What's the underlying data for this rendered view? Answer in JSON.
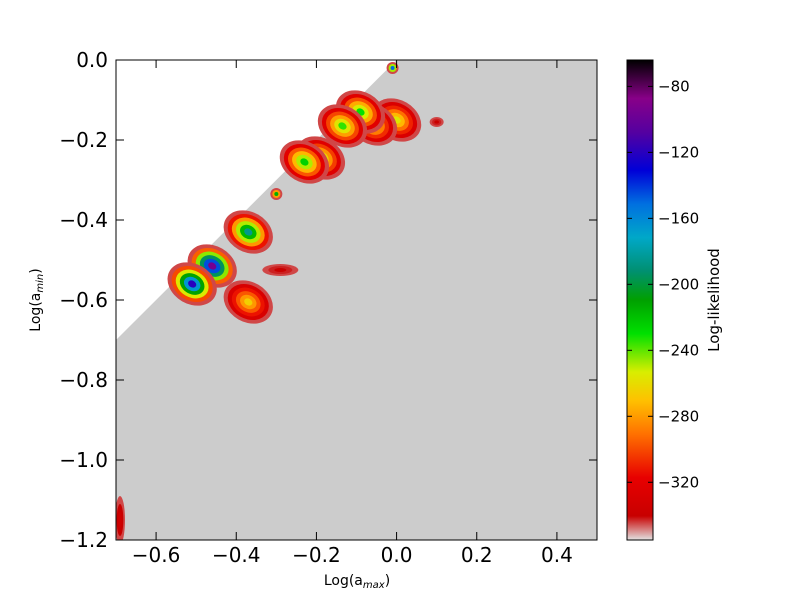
{
  "chart_data": {
    "type": "heatmap",
    "title": "",
    "xlabel": "Log(a_max)",
    "ylabel": "Log(a_min)",
    "xlabel_parts": {
      "base": "Log(a",
      "sub": "max",
      "end": ")"
    },
    "ylabel_parts": {
      "base": "Log(a",
      "sub": "min",
      "end": ")"
    },
    "xlim": [
      -0.7,
      0.5
    ],
    "ylim": [
      -1.2,
      0.0
    ],
    "x_ticks": [
      -0.6,
      -0.4,
      -0.2,
      0.0,
      0.2,
      0.4
    ],
    "x_tick_labels": [
      "−0.6",
      "−0.4",
      "−0.2",
      "0.0",
      "0.2",
      "0.4"
    ],
    "y_ticks": [
      0.0,
      -0.2,
      -0.4,
      -0.6,
      -0.8,
      -1.0,
      -1.2
    ],
    "y_tick_labels": [
      "0.0",
      "−0.2",
      "−0.4",
      "−0.6",
      "−0.8",
      "−1.0",
      "−1.2"
    ],
    "background_color": "#cccccc",
    "excluded_region": "a_min > a_max (white)",
    "grid": false,
    "colorbar": {
      "label": "Log-likelihood",
      "range": [
        -355,
        -64
      ],
      "ticks": [
        -80,
        -120,
        -160,
        -200,
        -240,
        -280,
        -320
      ],
      "tick_labels": [
        "−80",
        "−120",
        "−160",
        "−200",
        "−240",
        "−280",
        "−320"
      ],
      "colormap": "nipy_spectral-like",
      "stops": [
        {
          "v": 0.0,
          "color": "#e2e2e2"
        },
        {
          "v": 0.05,
          "color": "#c80000"
        },
        {
          "v": 0.13,
          "color": "#e80000"
        },
        {
          "v": 0.22,
          "color": "#ff7000"
        },
        {
          "v": 0.29,
          "color": "#ffc000"
        },
        {
          "v": 0.35,
          "color": "#d8ee00"
        },
        {
          "v": 0.43,
          "color": "#00e000"
        },
        {
          "v": 0.5,
          "color": "#00a000"
        },
        {
          "v": 0.56,
          "color": "#009070"
        },
        {
          "v": 0.63,
          "color": "#00a8c8"
        },
        {
          "v": 0.7,
          "color": "#0070e0"
        },
        {
          "v": 0.77,
          "color": "#0000d8"
        },
        {
          "v": 0.85,
          "color": "#5500a0"
        },
        {
          "v": 0.92,
          "color": "#880088"
        },
        {
          "v": 1.0,
          "color": "#000000"
        }
      ]
    },
    "regions": [
      {
        "x": 0.0,
        "y": -0.15,
        "peak": -255,
        "shape": "blob"
      },
      {
        "x": -0.06,
        "y": -0.16,
        "peak": -250,
        "shape": "blob"
      },
      {
        "x": -0.09,
        "y": -0.13,
        "peak": -230,
        "shape": "blob"
      },
      {
        "x": -0.135,
        "y": -0.165,
        "peak": -235,
        "shape": "blob"
      },
      {
        "x": 0.1,
        "y": -0.155,
        "peak": -340,
        "shape": "spot"
      },
      {
        "x": -0.19,
        "y": -0.245,
        "peak": -240,
        "shape": "blob"
      },
      {
        "x": -0.23,
        "y": -0.255,
        "peak": -225,
        "shape": "blob"
      },
      {
        "x": -0.37,
        "y": -0.43,
        "peak": -185,
        "shape": "blob"
      },
      {
        "x": -0.46,
        "y": -0.515,
        "peak": -95,
        "shape": "blob"
      },
      {
        "x": -0.51,
        "y": -0.56,
        "peak": -120,
        "shape": "blob"
      },
      {
        "x": -0.37,
        "y": -0.605,
        "peak": -265,
        "shape": "blob"
      },
      {
        "x": -0.29,
        "y": -0.525,
        "peak": -340,
        "shape": "streak"
      },
      {
        "x": -0.01,
        "y": -0.02,
        "peak": -150,
        "shape": "speck"
      },
      {
        "x": -0.3,
        "y": -0.335,
        "peak": -215,
        "shape": "speck"
      },
      {
        "x": -0.69,
        "y": -1.15,
        "peak": -335,
        "shape": "edge"
      }
    ]
  }
}
